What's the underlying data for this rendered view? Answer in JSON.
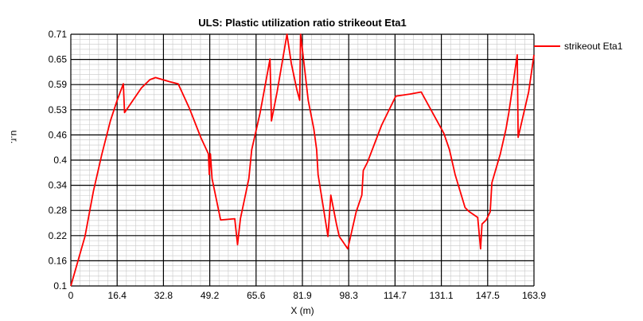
{
  "chart_data": {
    "type": "line",
    "title": "ULS: Plastic utilization ratio strikeout Eta1",
    "xlabel": "X (m)",
    "ylabel": "u.r.",
    "xlim": [
      0,
      163.9
    ],
    "ylim": [
      0.1,
      0.71
    ],
    "x_ticks": [
      "0",
      "16.4",
      "32.8",
      "49.2",
      "65.6",
      "81.9",
      "98.3",
      "114.7",
      "131.1",
      "147.5",
      "163.9"
    ],
    "y_ticks": [
      "0.1",
      "0.16",
      "0.22",
      "0.28",
      "0.34",
      "0.4",
      "0.46",
      "0.53",
      "0.59",
      "0.65",
      "0.71"
    ],
    "grid": true,
    "legend_position": "top-right",
    "series": [
      {
        "name": "strikeout Eta1",
        "color": "#ff0000",
        "points": [
          [
            0,
            0.1
          ],
          [
            2.5,
            0.16
          ],
          [
            5,
            0.22
          ],
          [
            8,
            0.33
          ],
          [
            11,
            0.42
          ],
          [
            14,
            0.5
          ],
          [
            16.4,
            0.55
          ],
          [
            18.6,
            0.59
          ],
          [
            19,
            0.52
          ],
          [
            22,
            0.55
          ],
          [
            25,
            0.58
          ],
          [
            28,
            0.6
          ],
          [
            30,
            0.605
          ],
          [
            35,
            0.595
          ],
          [
            38,
            0.59
          ],
          [
            42,
            0.53
          ],
          [
            46,
            0.46
          ],
          [
            48.7,
            0.42
          ],
          [
            49,
            0.37
          ],
          [
            49.4,
            0.42
          ],
          [
            50,
            0.36
          ],
          [
            53,
            0.26
          ],
          [
            58,
            0.263
          ],
          [
            59,
            0.2
          ],
          [
            60,
            0.263
          ],
          [
            63,
            0.36
          ],
          [
            64,
            0.43
          ],
          [
            67,
            0.52
          ],
          [
            70.5,
            0.65
          ],
          [
            71,
            0.5
          ],
          [
            73,
            0.57
          ],
          [
            75,
            0.65
          ],
          [
            76.5,
            0.71
          ],
          [
            78,
            0.64
          ],
          [
            80,
            0.575
          ],
          [
            81,
            0.55
          ],
          [
            81.3,
            0.71
          ],
          [
            82.5,
            0.64
          ],
          [
            84,
            0.55
          ],
          [
            86,
            0.48
          ],
          [
            87,
            0.43
          ],
          [
            87.5,
            0.37
          ],
          [
            91,
            0.22
          ],
          [
            92,
            0.32
          ],
          [
            94,
            0.25
          ],
          [
            95,
            0.22
          ],
          [
            98,
            0.19
          ],
          [
            101,
            0.28
          ],
          [
            103,
            0.32
          ],
          [
            103.5,
            0.38
          ],
          [
            105,
            0.4
          ],
          [
            110,
            0.49
          ],
          [
            115,
            0.56
          ],
          [
            120,
            0.565
          ],
          [
            124,
            0.57
          ],
          [
            128,
            0.52
          ],
          [
            132,
            0.47
          ],
          [
            133.5,
            0.44
          ],
          [
            134,
            0.43
          ],
          [
            136,
            0.37
          ],
          [
            139.5,
            0.29
          ],
          [
            141,
            0.28
          ],
          [
            144,
            0.266
          ],
          [
            145,
            0.19
          ],
          [
            145.5,
            0.25
          ],
          [
            147,
            0.26
          ],
          [
            148.4,
            0.28
          ],
          [
            149,
            0.35
          ],
          [
            152,
            0.42
          ],
          [
            154,
            0.48
          ],
          [
            155,
            0.52
          ],
          [
            156.5,
            0.59
          ],
          [
            158,
            0.66
          ],
          [
            158.3,
            0.46
          ],
          [
            162,
            0.57
          ],
          [
            163.9,
            0.66
          ]
        ]
      }
    ]
  }
}
